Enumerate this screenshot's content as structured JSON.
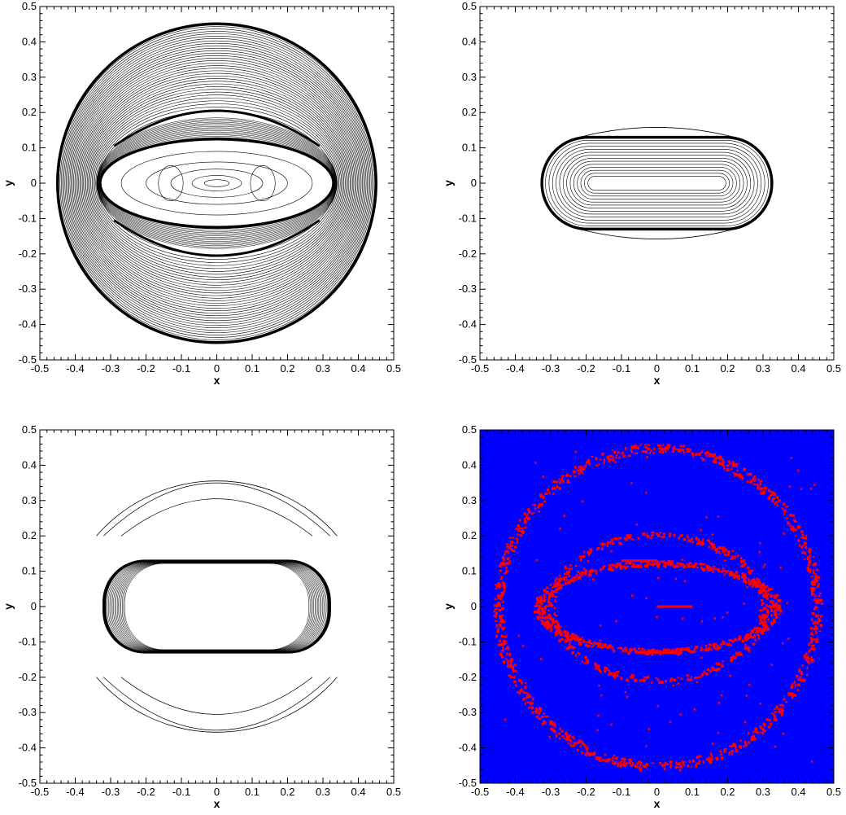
{
  "chart_data": [
    {
      "type": "contour",
      "position": "top-left",
      "xlabel": "x",
      "ylabel": "y",
      "xlim": [
        -0.5,
        0.5
      ],
      "ylim": [
        -0.5,
        0.5
      ],
      "xticks": [
        "-0.5",
        "-0.4",
        "-0.3",
        "-0.2",
        "-0.1",
        "0",
        "0.1",
        "0.2",
        "0.3",
        "0.4",
        "0.5"
      ],
      "yticks": [
        "-0.5",
        "-0.4",
        "-0.3",
        "-0.2",
        "-0.1",
        "0",
        "0.1",
        "0.2",
        "0.3",
        "0.4",
        "0.5"
      ],
      "features": {
        "outer_shock_radius": 0.45,
        "inner_shock_ellipse": {
          "rx": 0.33,
          "ry": 0.125
        },
        "cap_arc_y": 0.205
      },
      "background": "#ffffff",
      "line_color": "#000000"
    },
    {
      "type": "contour",
      "position": "top-right",
      "xlabel": "x",
      "ylabel": "y",
      "xlim": [
        -0.5,
        0.5
      ],
      "ylim": [
        -0.5,
        0.5
      ],
      "xticks": [
        "-0.5",
        "-0.4",
        "-0.3",
        "-0.2",
        "-0.1",
        "0",
        "0.1",
        "0.2",
        "0.3",
        "0.4",
        "0.5"
      ],
      "yticks": [
        "-0.5",
        "-0.4",
        "-0.3",
        "-0.2",
        "-0.1",
        "0",
        "0.1",
        "0.2",
        "0.3",
        "0.4",
        "0.5"
      ],
      "features": {
        "shock_shape": {
          "rx": 0.325,
          "ry": 0.13
        },
        "bulge_top_y": 0.155
      },
      "background": "#ffffff",
      "line_color": "#000000"
    },
    {
      "type": "contour",
      "position": "bottom-left",
      "xlabel": "x",
      "ylabel": "y",
      "xlim": [
        -0.5,
        0.5
      ],
      "ylim": [
        -0.5,
        0.5
      ],
      "xticks": [
        "-0.5",
        "-0.4",
        "-0.3",
        "-0.2",
        "-0.1",
        "0",
        "0.1",
        "0.2",
        "0.3",
        "0.4",
        "0.5"
      ],
      "yticks": [
        "-0.5",
        "-0.4",
        "-0.3",
        "-0.2",
        "-0.1",
        "0",
        "0.1",
        "0.2",
        "0.3",
        "0.4",
        "0.5"
      ],
      "features": {
        "outer_arc_radius": 0.45,
        "inner_shape": {
          "rx": 0.32,
          "ry": 0.13
        }
      },
      "background": "#ffffff",
      "line_color": "#000000"
    },
    {
      "type": "indicator-map",
      "position": "bottom-right",
      "xlabel": "x",
      "ylabel": "y",
      "xlim": [
        -0.5,
        0.5
      ],
      "ylim": [
        -0.5,
        0.5
      ],
      "xticks": [
        "-0.5",
        "-0.4",
        "-0.3",
        "-0.2",
        "-0.1",
        "0",
        "0.1",
        "0.2",
        "0.3",
        "0.4",
        "0.5"
      ],
      "yticks": [
        "-0.5",
        "-0.4",
        "-0.3",
        "-0.2",
        "-0.1",
        "0",
        "0.1",
        "0.2",
        "0.3",
        "0.4",
        "0.5"
      ],
      "features": {
        "outer_ring_radius": 0.45,
        "inner_ring": {
          "rx": 0.33,
          "ry": 0.125
        },
        "cap_arc_y": 0.205
      },
      "background": "#0000ff",
      "marker_color": "#ff0000"
    }
  ]
}
